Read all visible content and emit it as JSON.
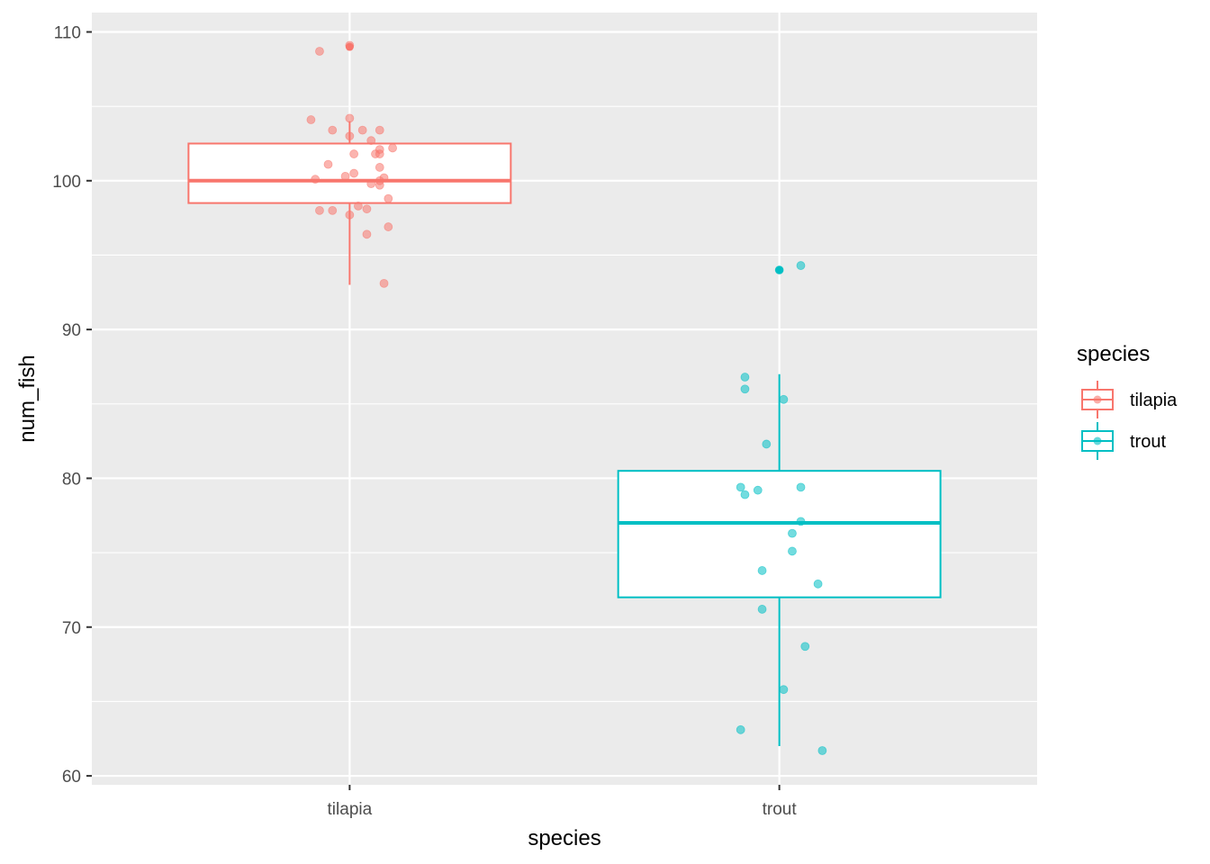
{
  "chart_data": {
    "type": "box",
    "xlabel": "species",
    "ylabel": "num_fish",
    "categories": [
      "tilapia",
      "trout"
    ],
    "ylim": [
      59.4,
      111.3
    ],
    "yticks": [
      60,
      70,
      80,
      90,
      100,
      110
    ],
    "grid": true,
    "legend": {
      "title": "species",
      "position": "right",
      "entries": [
        "tilapia",
        "trout"
      ]
    },
    "colors": {
      "tilapia": "#F8766D",
      "trout": "#00BFC4",
      "panel": "#EBEBEB",
      "grid": "#FFFFFF"
    },
    "boxes": [
      {
        "name": "tilapia",
        "q1": 98.5,
        "median": 100.0,
        "q3": 102.5,
        "whisker_low": 93.0,
        "whisker_high": 104.0,
        "outliers": [
          109.0
        ]
      },
      {
        "name": "trout",
        "q1": 72.0,
        "median": 77.0,
        "q3": 80.5,
        "whisker_low": 62.0,
        "whisker_high": 87.0,
        "outliers": [
          94.0
        ]
      }
    ],
    "points": {
      "tilapia": [
        {
          "x": 0.93,
          "y": 108.7
        },
        {
          "x": 1.0,
          "y": 109.1
        },
        {
          "x": 0.91,
          "y": 104.1
        },
        {
          "x": 1.0,
          "y": 104.2
        },
        {
          "x": 0.96,
          "y": 103.4
        },
        {
          "x": 1.03,
          "y": 103.4
        },
        {
          "x": 1.07,
          "y": 103.4
        },
        {
          "x": 1.0,
          "y": 103.0
        },
        {
          "x": 1.05,
          "y": 102.7
        },
        {
          "x": 1.1,
          "y": 102.2
        },
        {
          "x": 1.07,
          "y": 102.1
        },
        {
          "x": 1.01,
          "y": 101.8
        },
        {
          "x": 1.06,
          "y": 101.8
        },
        {
          "x": 1.07,
          "y": 101.8
        },
        {
          "x": 0.95,
          "y": 101.1
        },
        {
          "x": 1.07,
          "y": 100.9
        },
        {
          "x": 1.01,
          "y": 100.5
        },
        {
          "x": 0.99,
          "y": 100.3
        },
        {
          "x": 0.92,
          "y": 100.1
        },
        {
          "x": 1.08,
          "y": 100.2
        },
        {
          "x": 1.07,
          "y": 100.0
        },
        {
          "x": 1.05,
          "y": 99.8
        },
        {
          "x": 1.07,
          "y": 99.7
        },
        {
          "x": 1.09,
          "y": 98.8
        },
        {
          "x": 1.02,
          "y": 98.3
        },
        {
          "x": 1.04,
          "y": 98.1
        },
        {
          "x": 0.93,
          "y": 98.0
        },
        {
          "x": 0.96,
          "y": 98.0
        },
        {
          "x": 1.0,
          "y": 97.7
        },
        {
          "x": 1.09,
          "y": 96.9
        },
        {
          "x": 1.04,
          "y": 96.4
        },
        {
          "x": 1.08,
          "y": 93.1
        }
      ],
      "trout": [
        {
          "x": 2.0,
          "y": 94.0
        },
        {
          "x": 2.05,
          "y": 94.3
        },
        {
          "x": 1.92,
          "y": 86.8
        },
        {
          "x": 1.92,
          "y": 86.0
        },
        {
          "x": 2.01,
          "y": 85.3
        },
        {
          "x": 1.97,
          "y": 82.3
        },
        {
          "x": 1.91,
          "y": 79.4
        },
        {
          "x": 2.05,
          "y": 79.4
        },
        {
          "x": 1.95,
          "y": 79.2
        },
        {
          "x": 1.92,
          "y": 78.9
        },
        {
          "x": 2.05,
          "y": 77.1
        },
        {
          "x": 2.03,
          "y": 76.3
        },
        {
          "x": 2.03,
          "y": 75.1
        },
        {
          "x": 1.96,
          "y": 73.8
        },
        {
          "x": 2.09,
          "y": 72.9
        },
        {
          "x": 1.96,
          "y": 71.2
        },
        {
          "x": 2.06,
          "y": 68.7
        },
        {
          "x": 2.01,
          "y": 65.8
        },
        {
          "x": 1.91,
          "y": 63.1
        },
        {
          "x": 2.1,
          "y": 61.7
        }
      ]
    }
  }
}
